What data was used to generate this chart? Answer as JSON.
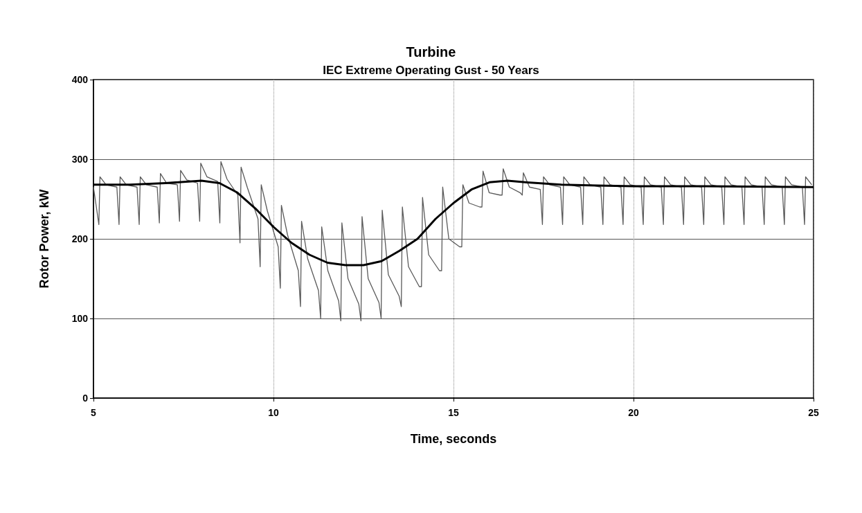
{
  "chart_data": {
    "type": "line",
    "title": "Turbine",
    "subtitle": "IEC Extreme Operating Gust - 50 Years",
    "xlabel": "Time, seconds",
    "ylabel": "Rotor Power, kW",
    "xlim": [
      5,
      25
    ],
    "xticks": [
      5,
      10,
      15,
      20,
      25
    ],
    "ylim": [
      0,
      400
    ],
    "yticks": [
      0,
      100,
      200,
      300,
      400
    ],
    "grid": true,
    "marker": "none",
    "line_style": "solid",
    "series": [
      {
        "color": "#000000",
        "x": [
          5,
          6,
          7,
          8,
          8.5,
          9,
          9.5,
          10,
          10.5,
          11,
          11.5,
          12,
          12.5,
          13,
          13.5,
          14,
          14.5,
          15,
          15.5,
          16,
          16.5,
          17,
          18,
          19,
          20,
          22,
          25
        ],
        "values": [
          268,
          268,
          270,
          273,
          270,
          258,
          238,
          215,
          195,
          180,
          170,
          167,
          167,
          172,
          185,
          200,
          225,
          245,
          262,
          271,
          273,
          271,
          268,
          267,
          266,
          266,
          265
        ]
      },
      {
        "color": "#5a5a5a",
        "x": [
          5,
          5.15,
          5.18,
          5.35,
          5.65,
          5.71,
          5.74,
          5.91,
          6.21,
          6.27,
          6.3,
          6.47,
          6.77,
          6.83,
          6.86,
          7.03,
          7.33,
          7.39,
          7.42,
          7.59,
          7.89,
          7.95,
          7.98,
          8.15,
          8.45,
          8.51,
          8.54,
          8.71,
          9.01,
          9.07,
          9.1,
          9.27,
          9.57,
          9.63,
          9.66,
          9.83,
          10.13,
          10.19,
          10.22,
          10.39,
          10.69,
          10.75,
          10.78,
          10.95,
          11.25,
          11.31,
          11.34,
          11.51,
          11.81,
          11.87,
          11.9,
          12.07,
          12.37,
          12.43,
          12.46,
          12.63,
          12.93,
          12.99,
          13.02,
          13.19,
          13.49,
          13.55,
          13.58,
          13.75,
          14.05,
          14.11,
          14.14,
          14.31,
          14.61,
          14.67,
          14.7,
          14.87,
          15.17,
          15.23,
          15.26,
          15.43,
          15.73,
          15.79,
          15.82,
          15.99,
          16.29,
          16.35,
          16.38,
          16.55,
          16.85,
          16.91,
          16.94,
          17.11,
          17.41,
          17.47,
          17.5,
          17.67,
          17.97,
          18.03,
          18.06,
          18.23,
          18.53,
          18.59,
          18.62,
          18.79,
          19.09,
          19.15,
          19.18,
          19.35,
          19.65,
          19.71,
          19.74,
          19.91,
          20.21,
          20.27,
          20.3,
          20.47,
          20.77,
          20.83,
          20.86,
          21.03,
          21.33,
          21.39,
          21.42,
          21.59,
          21.89,
          21.95,
          21.98,
          22.15,
          22.45,
          22.51,
          22.54,
          22.71,
          23.01,
          23.07,
          23.1,
          23.27,
          23.57,
          23.63,
          23.66,
          23.83,
          24.13,
          24.19,
          24.22,
          24.39,
          24.69,
          24.75,
          24.78,
          24.95
        ],
        "values": [
          265,
          218,
          278,
          268,
          265,
          218,
          278,
          268,
          265,
          218,
          278,
          268,
          265,
          220,
          282,
          270,
          268,
          222,
          286,
          274,
          270,
          222,
          295,
          278,
          272,
          220,
          297,
          275,
          255,
          195,
          290,
          265,
          225,
          165,
          268,
          235,
          190,
          138,
          242,
          205,
          160,
          115,
          222,
          175,
          135,
          100,
          215,
          160,
          122,
          97,
          220,
          150,
          118,
          97,
          228,
          150,
          120,
          100,
          236,
          155,
          128,
          115,
          240,
          165,
          140,
          140,
          252,
          180,
          160,
          160,
          265,
          200,
          190,
          190,
          268,
          245,
          240,
          240,
          285,
          258,
          255,
          255,
          288,
          265,
          258,
          255,
          283,
          265,
          262,
          218,
          278,
          268,
          265,
          218,
          278,
          268,
          265,
          218,
          278,
          268,
          265,
          218,
          278,
          268,
          265,
          218,
          278,
          268,
          265,
          218,
          278,
          268,
          265,
          218,
          278,
          268,
          265,
          218,
          278,
          268,
          265,
          218,
          278,
          268,
          265,
          218,
          278,
          268,
          265,
          218,
          278,
          268,
          265,
          218,
          278,
          268,
          265,
          218,
          278,
          268,
          265,
          218,
          278,
          268
        ]
      }
    ]
  }
}
